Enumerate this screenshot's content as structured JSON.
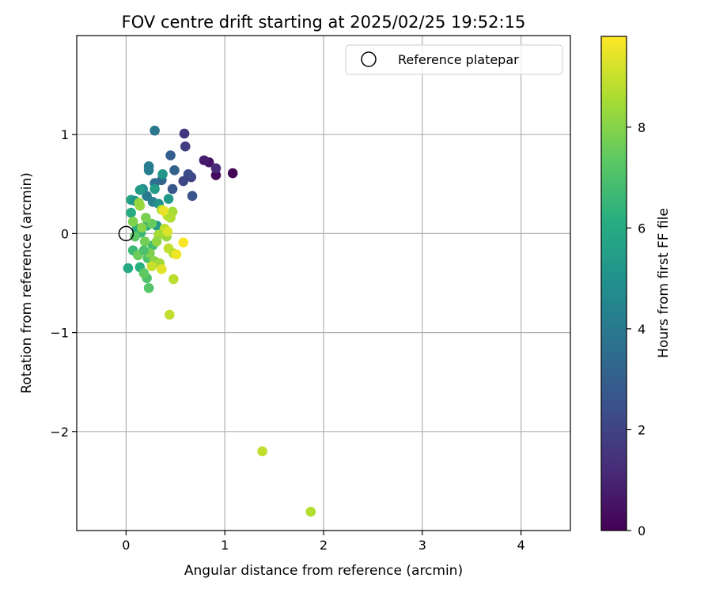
{
  "chart_data": {
    "type": "scatter",
    "title": "FOV centre drift starting at 2025/02/25 19:52:15",
    "xlabel": "Angular distance from reference (arcmin)",
    "ylabel": "Rotation from reference (arcmin)",
    "xlim": [
      -0.5,
      4.5
    ],
    "ylim": [
      -3.0,
      2.0
    ],
    "xticks": [
      "0",
      "1",
      "2",
      "3",
      "4"
    ],
    "yticks": [
      "−2",
      "−1",
      "0",
      "1"
    ],
    "grid": true,
    "legend": {
      "entries": [
        "Reference platepar"
      ],
      "placement": "top-right"
    },
    "reference_point": {
      "x": 0.0,
      "y": 0.0
    },
    "colorbar": {
      "label": "Hours from first FF file",
      "colormap": "viridis",
      "range": [
        0,
        9.8
      ],
      "ticks": [
        "0",
        "2",
        "4",
        "6",
        "8"
      ]
    },
    "series": [
      {
        "points": [
          {
            "x": 1.08,
            "y": 0.61,
            "c": 0.1
          },
          {
            "x": 0.91,
            "y": 0.59,
            "c": 0.3
          },
          {
            "x": 0.84,
            "y": 0.72,
            "c": 0.5
          },
          {
            "x": 0.79,
            "y": 0.74,
            "c": 0.8
          },
          {
            "x": 0.91,
            "y": 0.66,
            "c": 1.2
          },
          {
            "x": 0.59,
            "y": 1.01,
            "c": 1.6
          },
          {
            "x": 0.6,
            "y": 0.88,
            "c": 1.8
          },
          {
            "x": 0.66,
            "y": 0.57,
            "c": 2.0
          },
          {
            "x": 0.63,
            "y": 0.6,
            "c": 2.3
          },
          {
            "x": 0.58,
            "y": 0.53,
            "c": 2.1
          },
          {
            "x": 0.67,
            "y": 0.38,
            "c": 2.6
          },
          {
            "x": 0.45,
            "y": 0.79,
            "c": 2.9
          },
          {
            "x": 0.49,
            "y": 0.64,
            "c": 3.1
          },
          {
            "x": 0.47,
            "y": 0.45,
            "c": 2.7
          },
          {
            "x": 0.36,
            "y": 0.54,
            "c": 3.2
          },
          {
            "x": 0.29,
            "y": 1.04,
            "c": 3.9
          },
          {
            "x": 0.23,
            "y": 0.68,
            "c": 4.1
          },
          {
            "x": 0.23,
            "y": 0.64,
            "c": 4.2
          },
          {
            "x": 0.29,
            "y": 0.51,
            "c": 3.6
          },
          {
            "x": 0.21,
            "y": 0.38,
            "c": 4.0
          },
          {
            "x": 0.27,
            "y": 0.32,
            "c": 4.3
          },
          {
            "x": 0.17,
            "y": 0.45,
            "c": 4.7
          },
          {
            "x": 0.37,
            "y": 0.6,
            "c": 5.2
          },
          {
            "x": 0.29,
            "y": 0.45,
            "c": 5.5
          },
          {
            "x": 0.14,
            "y": 0.44,
            "c": 5.4
          },
          {
            "x": 0.43,
            "y": 0.35,
            "c": 5.3
          },
          {
            "x": 0.05,
            "y": 0.34,
            "c": 5.6
          },
          {
            "x": 0.09,
            "y": 0.33,
            "c": 5.1
          },
          {
            "x": 0.33,
            "y": 0.3,
            "c": 5.0
          },
          {
            "x": 0.05,
            "y": 0.21,
            "c": 6.0
          },
          {
            "x": 0.21,
            "y": 0.08,
            "c": 5.9
          },
          {
            "x": 0.31,
            "y": 0.08,
            "c": 5.2
          },
          {
            "x": 0.11,
            "y": 0.05,
            "c": 6.1
          },
          {
            "x": 0.02,
            "y": -0.35,
            "c": 6.0
          },
          {
            "x": 0.14,
            "y": -0.34,
            "c": 6.2
          },
          {
            "x": 0.07,
            "y": -0.17,
            "c": 6.6
          },
          {
            "x": 0.15,
            "y": 0.01,
            "c": 6.5
          },
          {
            "x": 0.22,
            "y": -0.25,
            "c": 7.0
          },
          {
            "x": 0.21,
            "y": -0.45,
            "c": 7.1
          },
          {
            "x": 0.23,
            "y": -0.55,
            "c": 7.2
          },
          {
            "x": 0.18,
            "y": -0.4,
            "c": 7.4
          },
          {
            "x": 0.27,
            "y": -0.12,
            "c": 6.8
          },
          {
            "x": 0.12,
            "y": -0.22,
            "c": 7.6
          },
          {
            "x": 0.26,
            "y": 0.1,
            "c": 7.5
          },
          {
            "x": 0.2,
            "y": 0.16,
            "c": 7.8
          },
          {
            "x": 0.07,
            "y": 0.12,
            "c": 7.9
          },
          {
            "x": 0.13,
            "y": 0.31,
            "c": 8.2
          },
          {
            "x": 0.14,
            "y": 0.28,
            "c": 8.3
          },
          {
            "x": 0.16,
            "y": 0.06,
            "c": 8.0
          },
          {
            "x": 0.19,
            "y": -0.08,
            "c": 7.7
          },
          {
            "x": 0.24,
            "y": -0.2,
            "c": 7.9
          },
          {
            "x": 0.29,
            "y": -0.28,
            "c": 8.1
          },
          {
            "x": 0.34,
            "y": -0.3,
            "c": 8.4
          },
          {
            "x": 0.36,
            "y": 0.24,
            "c": 8.6
          },
          {
            "x": 0.42,
            "y": 0.18,
            "c": 8.8
          },
          {
            "x": 0.47,
            "y": 0.22,
            "c": 8.5
          },
          {
            "x": 0.45,
            "y": 0.16,
            "c": 8.7
          },
          {
            "x": 0.39,
            "y": 0.05,
            "c": 8.9
          },
          {
            "x": 0.41,
            "y": -0.03,
            "c": 8.3
          },
          {
            "x": 0.33,
            "y": -0.01,
            "c": 8.5
          },
          {
            "x": 0.31,
            "y": -0.08,
            "c": 8.2
          },
          {
            "x": 0.26,
            "y": -0.33,
            "c": 9.0
          },
          {
            "x": 0.36,
            "y": -0.36,
            "c": 9.4
          },
          {
            "x": 0.43,
            "y": -0.15,
            "c": 8.9
          },
          {
            "x": 0.48,
            "y": -0.2,
            "c": 8.8
          },
          {
            "x": 0.51,
            "y": -0.21,
            "c": 9.6
          },
          {
            "x": 0.58,
            "y": -0.09,
            "c": 9.7
          },
          {
            "x": 0.38,
            "y": 0.23,
            "c": 9.5
          },
          {
            "x": 0.42,
            "y": 0.02,
            "c": 9.3
          },
          {
            "x": 0.48,
            "y": -0.46,
            "c": 8.8
          },
          {
            "x": 0.44,
            "y": -0.82,
            "c": 8.9
          },
          {
            "x": 1.38,
            "y": -2.2,
            "c": 8.9
          },
          {
            "x": 1.87,
            "y": -2.81,
            "c": 8.7
          },
          {
            "x": 0.09,
            "y": -0.03,
            "c": 7.3
          },
          {
            "x": 0.18,
            "y": -0.17,
            "c": 7.0
          }
        ]
      }
    ]
  }
}
